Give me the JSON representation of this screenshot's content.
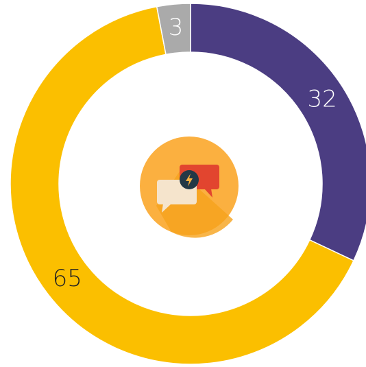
{
  "chart_data": {
    "type": "donut",
    "values": [
      32,
      65,
      3
    ],
    "colors": [
      "#4b3d82",
      "#fbbf00",
      "#aaaaaa"
    ],
    "label_colors": [
      "#ffffff",
      "#222222",
      "#ffffff"
    ]
  }
}
